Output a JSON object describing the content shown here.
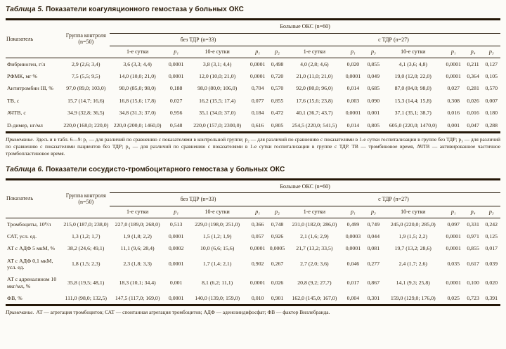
{
  "table5": {
    "title_label": "Таблица 5.",
    "title": "Показатели коагуляционного гемостаза у больных ОКС",
    "header": {
      "indicator": "Показатель",
      "control": "Группа контроля (n=50)",
      "patients": "Больные ОКС (n=60)",
      "no_tdr": "без ТДР (n=33)",
      "with_tdr": "с ТДР (n=27)",
      "subcols": [
        "1-е сутки",
        "p₁",
        "10-е сутки",
        "p₁",
        "p₂",
        "1-е сутки",
        "p₁",
        "p₃",
        "10-е сутки",
        "p₁",
        "p₄",
        "p₃"
      ]
    },
    "rows": [
      {
        "name": "Фибриноген, г/л",
        "values": [
          "2,9 (2,6; 3,4)",
          "3,6 (3,3; 4,4)",
          "0,0001",
          "3,8 (3,1; 4,4)",
          "0,0001",
          "0,498",
          "4,0 (2,8; 4,6)",
          "0,020",
          "0,855",
          "4,1 (3,6; 4,8)",
          "0,0001",
          "0,211",
          "0,127"
        ]
      },
      {
        "name": "РФМК, мг %",
        "values": [
          "7,5 (5,5; 9,5)",
          "14,0 (10,0; 21,0)",
          "0,0001",
          "12,0 (10,0; 21,0)",
          "0,0001",
          "0,720",
          "21,0 (11,0; 21,0)",
          "0,0001",
          "0,049",
          "19,0 (12,0; 22,0)",
          "0,0001",
          "0,364",
          "0,105"
        ]
      },
      {
        "name": "Антитромбин III, %",
        "values": [
          "97,0 (89,0; 103,0)",
          "90,0 (85,0; 98,0)",
          "0,188",
          "98,0 (80,0; 106,0)",
          "0,704",
          "0,570",
          "92,0 (80,0; 96,0)",
          "0,014",
          "0,685",
          "87,0 (84,0; 98,0)",
          "0,027",
          "0,281",
          "0,570"
        ]
      },
      {
        "name": "ТВ, с",
        "values": [
          "15,7 (14,7; 16,6)",
          "16,8 (15,6; 17,8)",
          "0,027",
          "16,2 (15,5; 17,4)",
          "0,077",
          "0,855",
          "17,6 (15,6; 23,8)",
          "0,003",
          "0,090",
          "15,3 (14,4; 15,8)",
          "0,308",
          "0,026",
          "0,007"
        ]
      },
      {
        "name": "АЧТВ, с",
        "values": [
          "34,9 (32,8; 36,5)",
          "34,8 (31,3; 37,0)",
          "0,956",
          "35,1 (34,0; 37,0)",
          "0,184",
          "0,472",
          "40,1 (36,7; 43,7)",
          "0,0001",
          "0,001",
          "37,1 (35,1; 38,7)",
          "0,016",
          "0,016",
          "0,180"
        ]
      },
      {
        "name": "D-димер, нг/мл",
        "values": [
          "220,0 (168,0; 220,0)",
          "220,0 (200,0; 1460,0)",
          "0,548",
          "220,0 (157,0; 2300,0)",
          "0,616",
          "0,805",
          "254,5 (220,0; 541,5)",
          "0,014",
          "0,805",
          "605,0 (220,0; 1470,0)",
          "0,001",
          "0,047",
          "0,288"
        ]
      }
    ],
    "note_label": "Примечание.",
    "note": "Здесь и в табл. 6—9: p₁ — для различий по сравнению с показателями в контрольной группе; p₂ — для различий по сравнению с показателями в 1-е сутки госпитализации в группе без ТДР; p₃ — для различий по сравнению с показателями пациентов без ТДР; p₄ — для различий по сравнению с показателями в 1-е сутки госпитализации в группе с ТДР. ТВ — тромбиновое время, АЧТВ — активированное частичное тромбопластиновое время."
  },
  "table6": {
    "title_label": "Таблица 6.",
    "title": "Показатели сосудисто-тромбоцитарного гемостаза у больных ОКС",
    "header": {
      "indicator": "Показатель",
      "control": "Группа контроля (n=50)",
      "patients": "Больные ОКС (n=60)",
      "no_tdr": "без ТДР (n=33)",
      "with_tdr": "с ТДР (n=27)",
      "subcols": [
        "1-е сутки",
        "p₁",
        "10-е сутки",
        "p₁",
        "p₂",
        "1-е сутки",
        "p₁",
        "p₃",
        "10-е сутки",
        "p₁",
        "p₄",
        "p₃"
      ]
    },
    "rows": [
      {
        "name": "Тромбоциты, 10⁹/л",
        "values": [
          "215,0 (187,0; 238,0)",
          "227,0 (189,0; 268,0)",
          "0,513",
          "229,0 (198,0; 251,0)",
          "0,366",
          "0,748",
          "231,0 (182,0; 286,0)",
          "0,499",
          "0,749",
          "245,0 (220,0; 285,0)",
          "0,097",
          "0,331",
          "0,242"
        ]
      },
      {
        "name": "САТ, усл. ед.",
        "values": [
          "1,3 (1,2; 1,7)",
          "1,9 (1,8; 2,2)",
          "0,0001",
          "1,5 (1,2; 1,9)",
          "0,057",
          "0,926",
          "2,1 (1,6; 2,9)",
          "0,0003",
          "0,044",
          "1,9 (1,5; 2,2)",
          "0,0001",
          "0,971",
          "0,125"
        ]
      },
      {
        "name": "АТ с АДФ 5 мкМ, %",
        "values": [
          "38,2 (24,6; 49,1)",
          "11,1 (9,6; 28,4)",
          "0,0002",
          "10,0 (6,6; 15,6)",
          "0,0001",
          "0,0005",
          "21,7 (13,2; 33,5)",
          "0,0001",
          "0,081",
          "19,7 (13,2; 28,6)",
          "0,0001",
          "0,855",
          "0,017"
        ]
      },
      {
        "name": "АТ с АДФ 0,1 мкМ, усл. ед.",
        "values": [
          "1,8 (1,5; 2,3)",
          "2,3 (1,8; 3,3)",
          "0,0001",
          "1,7 (1,4; 2,1)",
          "0,902",
          "0,267",
          "2,7 (2,0; 3,6)",
          "0,046",
          "0,277",
          "2,4 (1,7; 2,6)",
          "0,035",
          "0,617",
          "0,039"
        ]
      },
      {
        "name": "АТ с адреналином 10 мкг/мл, %",
        "values": [
          "35,8 (19,5; 48,1)",
          "18,3 (10,1; 34,4)",
          "0,001",
          "8,1 (6,2; 11,1)",
          "0,0001",
          "0,026",
          "20,8 (9,2; 27,7)",
          "0,017",
          "0,867",
          "14,1 (9,3; 25,8)",
          "0,0001",
          "0,100",
          "0,020"
        ]
      },
      {
        "name": "ФВ, %",
        "values": [
          "111,0 (98,0; 132,5)",
          "147,5 (117,0; 169,0)",
          "0,0001",
          "140,0 (139,0; 159,0)",
          "0,010",
          "0,901",
          "162,0 (145,0; 167,0)",
          "0,004",
          "0,301",
          "159,0 (129,0; 176,0)",
          "0,025",
          "0,723",
          "0,391"
        ]
      }
    ],
    "note_label": "Примечание.",
    "note": "АТ — агрегация тромбоцитов; САТ — спонтанная агрегация тромбоцитов; АДФ — аденозиндифосфат; ФВ — фактор Виллебранда."
  },
  "colors": {
    "text": "#2e1f0d",
    "rule": "#241708",
    "background": "#fcfbf7"
  }
}
